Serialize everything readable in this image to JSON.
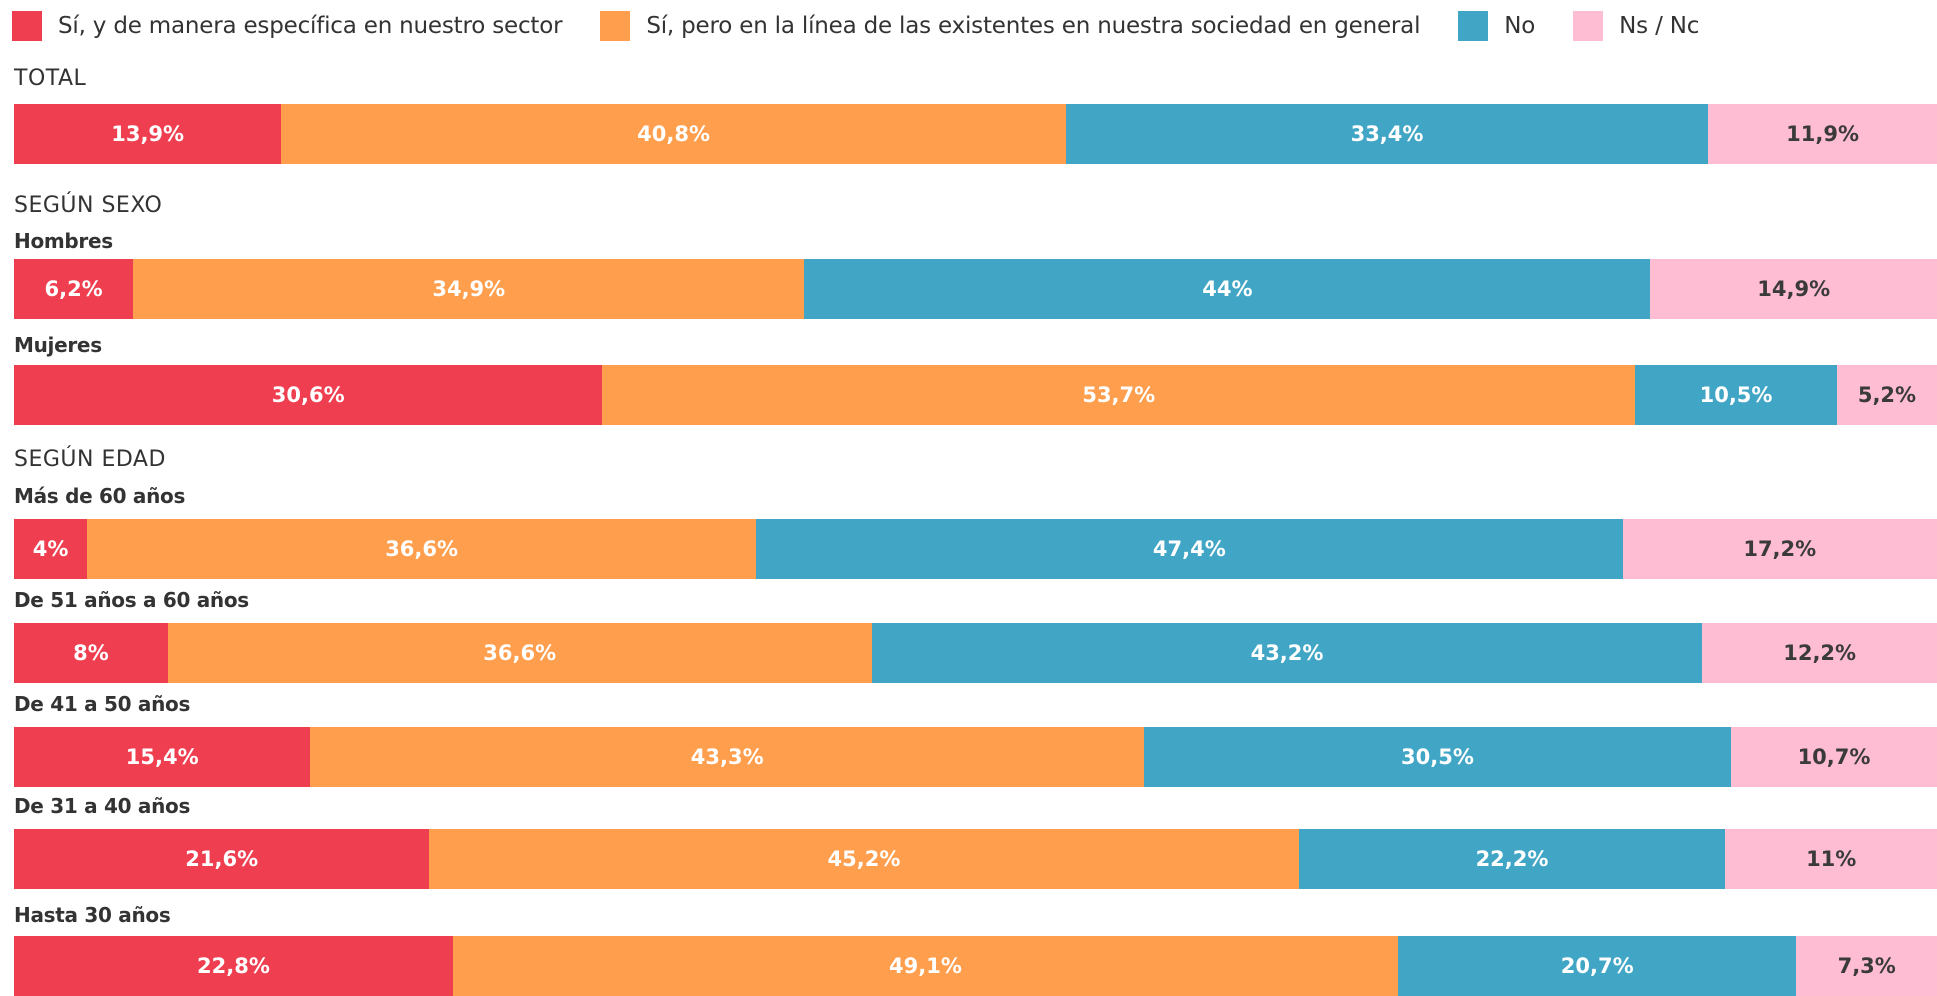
{
  "colors": {
    "si_especifica": "#EF3E4F",
    "si_general": "#FF9E4C",
    "no": "#41A6C5",
    "ns_nc": "#FFBDD3"
  },
  "legend": [
    {
      "key": "si_especifica",
      "label": "Sí, y de manera específica en nuestro sector"
    },
    {
      "key": "si_general",
      "label": "Sí, pero en la línea de las existentes en nuestra sociedad en general"
    },
    {
      "key": "no",
      "label": "No"
    },
    {
      "key": "ns_nc",
      "label": "Ns / Nc"
    }
  ],
  "chart_data": {
    "type": "bar",
    "orientation": "horizontal",
    "stacked": true,
    "normalized": true,
    "xlim": [
      0,
      100
    ],
    "series_names": [
      "Sí, y de manera específica en nuestro sector",
      "Sí, pero en la línea de las existentes en nuestra sociedad en general",
      "No",
      "Ns / Nc"
    ],
    "groups": [
      {
        "title": "TOTAL",
        "rows": [
          {
            "label": "",
            "values": [
              13.9,
              40.8,
              33.4,
              11.9
            ],
            "value_labels": [
              "13,9%",
              "40,8%",
              "33,4%",
              "11,9%"
            ]
          }
        ]
      },
      {
        "title": "SEGÚN SEXO",
        "rows": [
          {
            "label": "Hombres",
            "values": [
              6.2,
              34.9,
              44,
              14.9
            ],
            "value_labels": [
              "6,2%",
              "34,9%",
              "44%",
              "14,9%"
            ]
          },
          {
            "label": "Mujeres",
            "values": [
              30.6,
              53.7,
              10.5,
              5.2
            ],
            "value_labels": [
              "30,6%",
              "53,7%",
              "10,5%",
              "5,2%"
            ]
          }
        ]
      },
      {
        "title": "SEGÚN EDAD",
        "rows": [
          {
            "label": "Más de 60 años",
            "values": [
              4,
              36.6,
              47.4,
              17.2
            ],
            "value_labels": [
              "4%",
              "36,6%",
              "47,4%",
              "17,2%"
            ]
          },
          {
            "label": "De 51 años a 60 años",
            "values": [
              8,
              36.6,
              43.2,
              12.2
            ],
            "value_labels": [
              "8%",
              "36,6%",
              "43,2%",
              "12,2%"
            ]
          },
          {
            "label": "De 41 a 50 años",
            "values": [
              15.4,
              43.3,
              30.5,
              10.7
            ],
            "value_labels": [
              "15,4%",
              "43,3%",
              "30,5%",
              "10,7%"
            ]
          },
          {
            "label": "De 31 a 40 años",
            "values": [
              21.6,
              45.2,
              22.2,
              11
            ],
            "value_labels": [
              "21,6%",
              "45,2%",
              "22,2%",
              "11%"
            ]
          },
          {
            "label": "Hasta 30 años",
            "values": [
              22.8,
              49.1,
              20.7,
              7.3
            ],
            "value_labels": [
              "22,8%",
              "49,1%",
              "20,7%",
              "7,3%"
            ]
          }
        ]
      }
    ]
  }
}
